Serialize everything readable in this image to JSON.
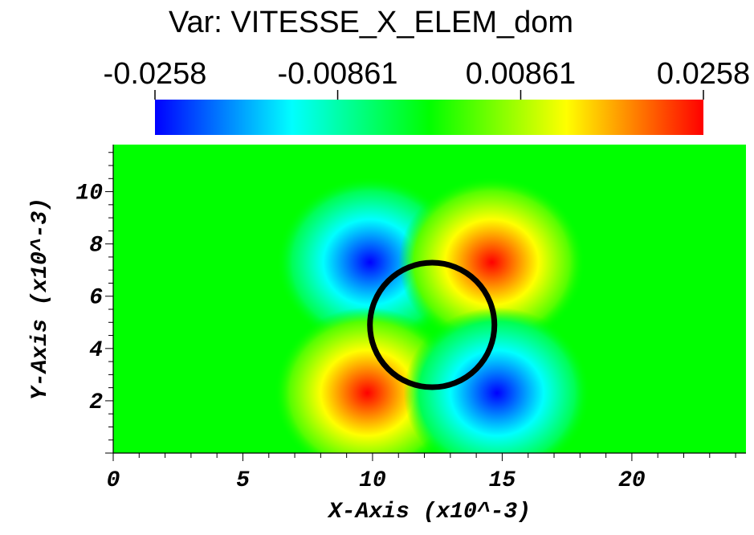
{
  "chart_data": {
    "type": "heatmap",
    "title": "Var: VITESSE_X_ELEM_dom",
    "colorbar": {
      "colormap": [
        "#0000ff",
        "#00ffff",
        "#00ff00",
        "#ffff00",
        "#ff0000"
      ],
      "range": [
        -0.0258,
        0.0258
      ],
      "ticks": [
        -0.0258,
        -0.00861,
        0.00861,
        0.0258
      ],
      "tick_labels": [
        "-0.0258",
        "-0.00861",
        "0.00861",
        "0.0258"
      ]
    },
    "xlabel": "X-Axis (x10^-3)",
    "ylabel": "Y-Axis (x10^-3)",
    "xlim": [
      0,
      24.4
    ],
    "ylim": [
      0,
      11.8
    ],
    "x_ticks": [
      0,
      5,
      10,
      15,
      20
    ],
    "x_tick_labels": [
      "0",
      "5",
      "10",
      "15",
      "20"
    ],
    "y_ticks": [
      2,
      4,
      6,
      8,
      10
    ],
    "y_tick_labels": [
      "2",
      "4",
      "6",
      "8",
      "10"
    ],
    "circle": {
      "center": [
        12.3,
        4.9
      ],
      "radius": 2.4,
      "color": "#000000"
    },
    "lobes": [
      {
        "center": [
          9.9,
          7.3
        ],
        "value": -0.0258
      },
      {
        "center": [
          14.6,
          7.3
        ],
        "value": 0.0258
      },
      {
        "center": [
          9.8,
          2.3
        ],
        "value": 0.0258
      },
      {
        "center": [
          14.8,
          2.3
        ],
        "value": -0.0258
      }
    ]
  }
}
